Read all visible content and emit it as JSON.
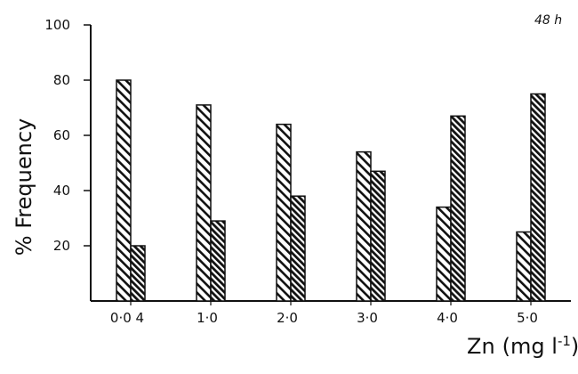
{
  "chart_data": {
    "type": "bar",
    "annotation": "48 h",
    "ylabel": "% Frequency",
    "xlabel_main": "Zn",
    "xlabel_unit_open": "(mg l",
    "xlabel_unit_exp": "-1",
    "xlabel_unit_close": ")",
    "ylim": [
      0,
      100
    ],
    "yticks": [
      20,
      40,
      60,
      80,
      100
    ],
    "categories": [
      "0·0 4",
      "1·0",
      "2·0",
      "3·0",
      "4·0",
      "5·0"
    ],
    "series": [
      {
        "values": [
          80,
          71,
          64,
          54,
          34,
          25
        ]
      },
      {
        "values": [
          20,
          29,
          38,
          47,
          67,
          75
        ]
      }
    ],
    "grid": false,
    "legend": "none"
  }
}
